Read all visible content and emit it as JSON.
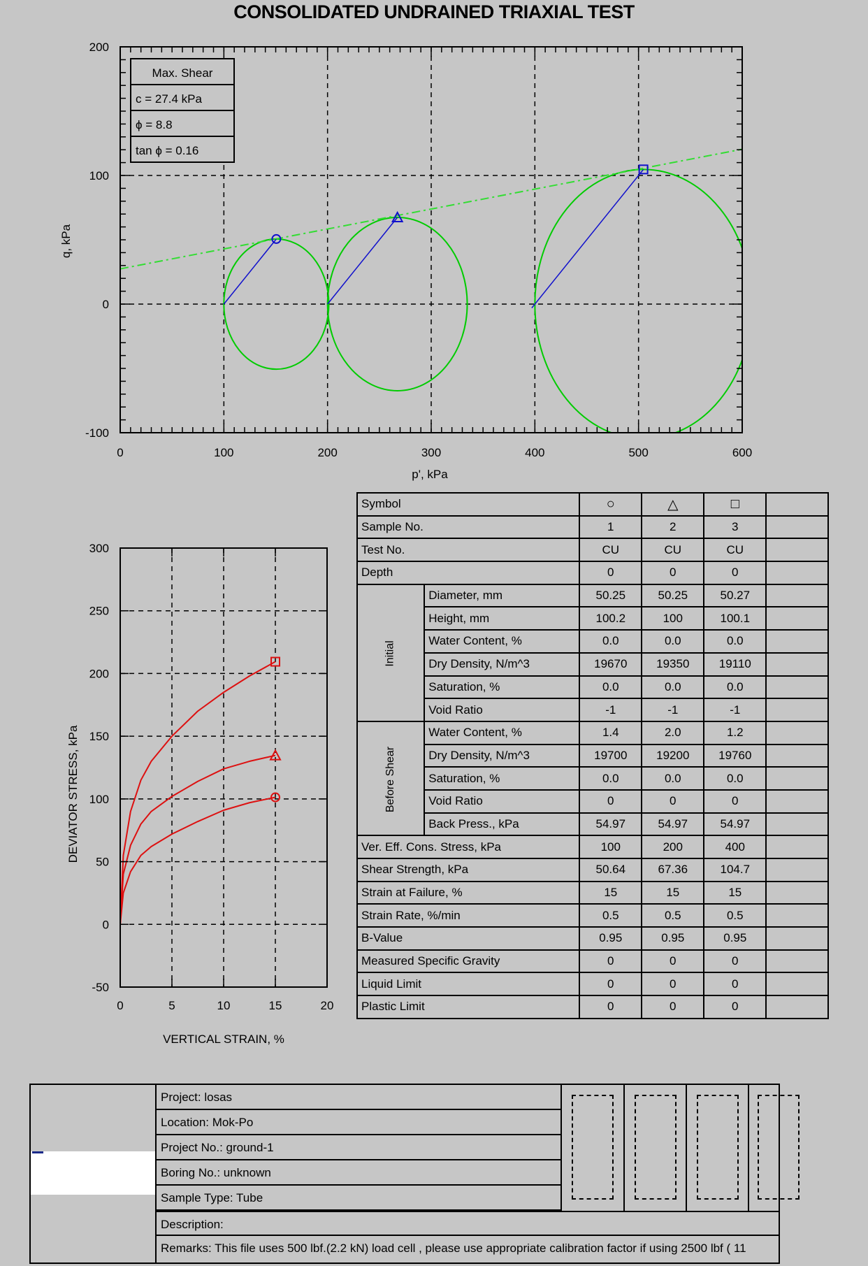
{
  "title": "CONSOLIDATED UNDRAINED TRIAXIAL TEST",
  "colors": {
    "background": "#c6c6c6",
    "circle": "#00cc00",
    "envelope": "#33dd33",
    "stress_path": "#1010cc",
    "curve": "#dd1010",
    "marker_blue": "#1010cc",
    "marker_red": "#dd1010"
  },
  "chart_data": [
    {
      "id": "mohr",
      "type": "scatter",
      "xlabel": "p', kPa",
      "ylabel": "q, kPa",
      "xlim": [
        0,
        600
      ],
      "ylim": [
        -100,
        200
      ],
      "xticks": [
        "0",
        "100",
        "200",
        "300",
        "400",
        "500",
        "600"
      ],
      "yticks": [
        "-100",
        "0",
        "100",
        "200"
      ],
      "grid": "dashed",
      "legend_box": {
        "header": "Max. Shear",
        "c": "c = 27.4 kPa",
        "phi": "ϕ = 8.8",
        "tanphi": "tan ϕ = 0.16"
      },
      "envelope": {
        "intercept": 27.4,
        "slope": 0.155
      },
      "circles": [
        {
          "center": 150.6,
          "radius": 50.64
        },
        {
          "center": 267.4,
          "radius": 67.36
        },
        {
          "center": 504.7,
          "radius": 104.7
        }
      ],
      "series": [
        {
          "marker": "circle",
          "points": [
            [
              100,
              0
            ],
            [
              150.6,
              50.6
            ]
          ]
        },
        {
          "marker": "triangle",
          "points": [
            [
              200,
              0
            ],
            [
              267.4,
              67.4
            ]
          ]
        },
        {
          "marker": "square",
          "points": [
            [
              397,
              -3
            ],
            [
              504.7,
              104.7
            ]
          ]
        }
      ]
    },
    {
      "id": "stress_strain",
      "type": "line",
      "xlabel": "VERTICAL STRAIN, %",
      "ylabel": "DEVIATOR STRESS, kPa",
      "xlim": [
        0,
        20
      ],
      "ylim": [
        -50,
        300
      ],
      "xticks": [
        "0",
        "5",
        "10",
        "15",
        "20"
      ],
      "yticks": [
        "-50",
        "0",
        "50",
        "100",
        "150",
        "200",
        "250",
        "300"
      ],
      "grid": "dashed",
      "series": [
        {
          "marker": "circle",
          "x": [
            0,
            0.3,
            1,
            2,
            3,
            5,
            7.5,
            10,
            12.5,
            15
          ],
          "y": [
            0,
            25,
            42,
            55,
            62,
            72,
            82,
            91,
            97,
            101.3
          ]
        },
        {
          "marker": "triangle",
          "x": [
            0,
            0.3,
            1,
            2,
            3,
            5,
            7.5,
            10,
            12.5,
            15
          ],
          "y": [
            0,
            40,
            63,
            80,
            90,
            102,
            114,
            124,
            130,
            134.7
          ]
        },
        {
          "marker": "square",
          "x": [
            0,
            0.3,
            1,
            2,
            3,
            5,
            7.5,
            10,
            12.5,
            15
          ],
          "y": [
            0,
            55,
            90,
            115,
            130,
            150,
            170,
            185,
            198,
            209.4
          ]
        }
      ]
    }
  ],
  "table": {
    "rows": [
      {
        "label": "Symbol",
        "values": [
          "○",
          "△",
          "□",
          ""
        ],
        "symbol": true
      },
      {
        "label": "Sample No.",
        "values": [
          "1",
          "2",
          "3",
          ""
        ]
      },
      {
        "label": "Test No.",
        "values": [
          "CU",
          "CU",
          "CU",
          ""
        ]
      },
      {
        "label": "Depth",
        "values": [
          "0",
          "0",
          "0",
          ""
        ]
      },
      {
        "group": "Initial",
        "span": 6,
        "label": "Diameter, mm",
        "values": [
          "50.25",
          "50.25",
          "50.27",
          ""
        ]
      },
      {
        "label": "Height, mm",
        "values": [
          "100.2",
          "100",
          "100.1",
          ""
        ],
        "in_group": true
      },
      {
        "label": "Water Content, %",
        "values": [
          "0.0",
          "0.0",
          "0.0",
          ""
        ],
        "in_group": true
      },
      {
        "label": "Dry Density, N/m^3",
        "values": [
          "19670",
          "19350",
          "19110",
          ""
        ],
        "in_group": true
      },
      {
        "label": "Saturation, %",
        "values": [
          "0.0",
          "0.0",
          "0.0",
          ""
        ],
        "in_group": true
      },
      {
        "label": "Void Ratio",
        "values": [
          "-1",
          "-1",
          "-1",
          ""
        ],
        "in_group": true
      },
      {
        "group": "Before Shear",
        "span": 5,
        "label": "Water Content, %",
        "values": [
          "1.4",
          "2.0",
          "1.2",
          ""
        ]
      },
      {
        "label": "Dry Density, N/m^3",
        "values": [
          "19700",
          "19200",
          "19760",
          ""
        ],
        "in_group": true
      },
      {
        "label": "Saturation, %",
        "values": [
          "0.0",
          "0.0",
          "0.0",
          ""
        ],
        "in_group": true
      },
      {
        "label": "Void Ratio",
        "values": [
          "0",
          "0",
          "0",
          ""
        ],
        "in_group": true
      },
      {
        "label": "Back Press., kPa",
        "values": [
          "54.97",
          "54.97",
          "54.97",
          ""
        ],
        "in_group": true
      },
      {
        "label": "Ver. Eff. Cons. Stress, kPa",
        "values": [
          "100",
          "200",
          "400",
          ""
        ]
      },
      {
        "label": "Shear Strength, kPa",
        "values": [
          "50.64",
          "67.36",
          "104.7",
          ""
        ]
      },
      {
        "label": "Strain at Failure, %",
        "values": [
          "15",
          "15",
          "15",
          ""
        ]
      },
      {
        "label": "Strain Rate, %/min",
        "values": [
          "0.5",
          "0.5",
          "0.5",
          ""
        ]
      },
      {
        "label": "B-Value",
        "values": [
          "0.95",
          "0.95",
          "0.95",
          ""
        ]
      },
      {
        "label": "Measured Specific Gravity",
        "values": [
          "0",
          "0",
          "0",
          ""
        ]
      },
      {
        "label": "Liquid Limit",
        "values": [
          "0",
          "0",
          "0",
          ""
        ]
      },
      {
        "label": "Plastic Limit",
        "values": [
          "0",
          "0",
          "0",
          ""
        ]
      }
    ]
  },
  "project": {
    "project": "Project: losas",
    "location": "Location: Mok-Po",
    "project_no": "Project No.: ground-1",
    "boring_no": "Boring No.: unknown",
    "sample_type": "Sample Type: Tube",
    "description": "Description:",
    "remarks": "Remarks: This file uses 500 lbf.(2.2 kN)  load cell , please use appropriate calibration factor if using 2500 lbf ( 11"
  }
}
